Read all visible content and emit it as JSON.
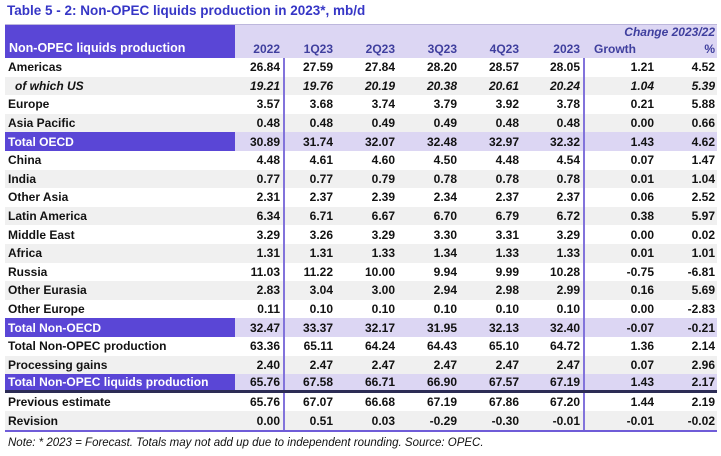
{
  "title": "Table 5 - 2: Non-OPEC liquids production in 2023*, mb/d",
  "table": {
    "corner_header": "Non-OPEC liquids production",
    "change_header": "Change 2023/22",
    "columns": [
      "2022",
      "1Q23",
      "2Q23",
      "3Q23",
      "4Q23",
      "2023",
      "Growth",
      "%"
    ],
    "rows": [
      {
        "label": "Americas",
        "style": "plain",
        "values": [
          "26.84",
          "27.59",
          "27.84",
          "28.20",
          "28.57",
          "28.05",
          "1.21",
          "4.52"
        ]
      },
      {
        "label": "of which US",
        "style": "italic",
        "values": [
          "19.21",
          "19.76",
          "20.19",
          "20.38",
          "20.61",
          "20.24",
          "1.04",
          "5.39"
        ]
      },
      {
        "label": "Europe",
        "style": "plain",
        "values": [
          "3.57",
          "3.68",
          "3.74",
          "3.79",
          "3.92",
          "3.78",
          "0.21",
          "5.88"
        ]
      },
      {
        "label": "Asia Pacific",
        "style": "alt",
        "values": [
          "0.48",
          "0.48",
          "0.49",
          "0.49",
          "0.48",
          "0.48",
          "0.00",
          "0.66"
        ]
      },
      {
        "label": "Total OECD",
        "style": "total",
        "values": [
          "30.89",
          "31.74",
          "32.07",
          "32.48",
          "32.97",
          "32.32",
          "1.43",
          "4.62"
        ]
      },
      {
        "label": "China",
        "style": "plain",
        "values": [
          "4.48",
          "4.61",
          "4.60",
          "4.50",
          "4.48",
          "4.54",
          "0.07",
          "1.47"
        ]
      },
      {
        "label": "India",
        "style": "alt",
        "values": [
          "0.77",
          "0.77",
          "0.79",
          "0.78",
          "0.78",
          "0.78",
          "0.01",
          "1.04"
        ]
      },
      {
        "label": "Other Asia",
        "style": "plain",
        "values": [
          "2.31",
          "2.37",
          "2.39",
          "2.34",
          "2.37",
          "2.37",
          "0.06",
          "2.52"
        ]
      },
      {
        "label": "Latin America",
        "style": "alt",
        "values": [
          "6.34",
          "6.71",
          "6.67",
          "6.70",
          "6.79",
          "6.72",
          "0.38",
          "5.97"
        ]
      },
      {
        "label": "Middle East",
        "style": "plain",
        "values": [
          "3.29",
          "3.26",
          "3.29",
          "3.30",
          "3.31",
          "3.29",
          "0.00",
          "0.02"
        ]
      },
      {
        "label": "Africa",
        "style": "alt",
        "values": [
          "1.31",
          "1.31",
          "1.33",
          "1.34",
          "1.33",
          "1.33",
          "0.01",
          "1.01"
        ]
      },
      {
        "label": "Russia",
        "style": "plain",
        "values": [
          "11.03",
          "11.22",
          "10.00",
          "9.94",
          "9.99",
          "10.28",
          "-0.75",
          "-6.81"
        ]
      },
      {
        "label": "Other Eurasia",
        "style": "alt",
        "values": [
          "2.83",
          "3.04",
          "3.00",
          "2.94",
          "2.98",
          "2.99",
          "0.16",
          "5.69"
        ]
      },
      {
        "label": "Other Europe",
        "style": "plain",
        "values": [
          "0.11",
          "0.10",
          "0.10",
          "0.10",
          "0.10",
          "0.10",
          "0.00",
          "-2.83"
        ]
      },
      {
        "label": "Total Non-OECD",
        "style": "total",
        "values": [
          "32.47",
          "33.37",
          "32.17",
          "31.95",
          "32.13",
          "32.40",
          "-0.07",
          "-0.21"
        ]
      },
      {
        "label": "Total Non-OPEC production",
        "style": "plain",
        "values": [
          "63.36",
          "65.11",
          "64.24",
          "64.43",
          "65.10",
          "64.72",
          "1.36",
          "2.14"
        ]
      },
      {
        "label": "Processing gains",
        "style": "alt",
        "values": [
          "2.40",
          "2.47",
          "2.47",
          "2.47",
          "2.47",
          "2.47",
          "0.07",
          "2.96"
        ]
      },
      {
        "label": "Total Non-OPEC liquids production",
        "style": "total thickline",
        "values": [
          "65.76",
          "67.58",
          "66.71",
          "66.90",
          "67.57",
          "67.19",
          "1.43",
          "2.17"
        ]
      },
      {
        "label": "Previous estimate",
        "style": "plain",
        "values": [
          "65.76",
          "67.07",
          "66.68",
          "67.19",
          "67.86",
          "67.20",
          "1.44",
          "2.19"
        ]
      },
      {
        "label": "Revision",
        "style": "alt",
        "values": [
          "0.00",
          "0.51",
          "0.03",
          "-0.29",
          "-0.30",
          "-0.01",
          "-0.01",
          "-0.02"
        ]
      }
    ],
    "colors": {
      "purple": "#5A46D6",
      "lavender": "#DCD6F3",
      "stripe_gray": "#F0F0F0",
      "separator": "#8273DB",
      "header_text": "#3F3F9E",
      "title_text": "#3636C6",
      "bottom_rule": "#6F5CD8",
      "heavy_rule": "#2C2C55"
    }
  },
  "note": "Note: * 2023 = Forecast. Totals may not add up due to independent rounding. Source: OPEC."
}
